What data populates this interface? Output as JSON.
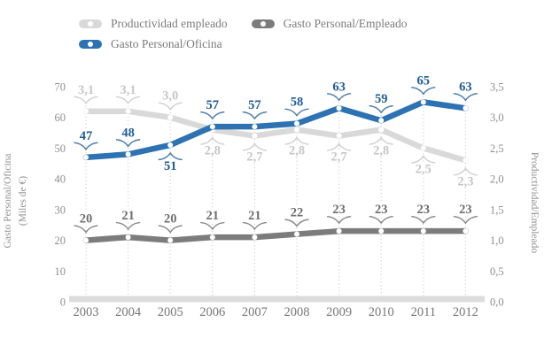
{
  "legend": {
    "items": [
      {
        "label": "Productividad empleado",
        "color": "#D9D9D9"
      },
      {
        "label": "Gasto Personal/Empleado",
        "color": "#7C7C7C"
      },
      {
        "label": "Gasto Personal/Oficina",
        "color": "#2D72B3"
      }
    ]
  },
  "chart_data": {
    "type": "line",
    "title": "",
    "grid": "vertical-dotted",
    "legend_position": "top-left",
    "categories": [
      "2003",
      "2004",
      "2005",
      "2006",
      "2007",
      "2008",
      "2009",
      "2010",
      "2011",
      "2012"
    ],
    "series": [
      {
        "name": "Productividad empleado",
        "axis": "right",
        "color": "#D9D9D9",
        "label_color": "#C6C6C6",
        "values": [
          3.1,
          3.1,
          3.0,
          2.8,
          2.7,
          2.8,
          2.7,
          2.8,
          2.5,
          2.3
        ],
        "labels": [
          "3,1",
          "3,1",
          "3,0",
          "2,8",
          "2,7",
          "2,8",
          "2,7",
          "2,8",
          "2,5",
          "2,3"
        ],
        "label_sides": [
          "above",
          "above",
          "above",
          "below",
          "below",
          "below",
          "below",
          "below",
          "below",
          "below"
        ]
      },
      {
        "name": "Gasto Personal/Empleado",
        "axis": "left",
        "color": "#7C7C7C",
        "label_color": "#6E6E6E",
        "values": [
          20,
          21,
          20,
          21,
          21,
          22,
          23,
          23,
          23,
          23
        ],
        "labels": [
          "20",
          "21",
          "20",
          "21",
          "21",
          "22",
          "23",
          "23",
          "23",
          "23"
        ],
        "label_sides": [
          "above",
          "above",
          "above",
          "above",
          "above",
          "above",
          "above",
          "above",
          "above",
          "above"
        ]
      },
      {
        "name": "Gasto Personal/Oficina",
        "axis": "left",
        "color": "#2D72B3",
        "label_color": "#1F5C97",
        "values": [
          47,
          48,
          51,
          57,
          57,
          58,
          63,
          59,
          65,
          63
        ],
        "labels": [
          "47",
          "48",
          "51",
          "57",
          "57",
          "58",
          "63",
          "59",
          "65",
          "63"
        ],
        "label_sides": [
          "above",
          "above",
          "below",
          "above",
          "above",
          "above",
          "above",
          "above",
          "above",
          "above"
        ]
      }
    ],
    "axes": {
      "left": {
        "title_line1": "Gasto Personal/Oficina",
        "title_line2": "(Miles de €)",
        "ticks": [
          "0",
          "10",
          "20",
          "30",
          "40",
          "50",
          "60",
          "70"
        ],
        "range": [
          0,
          70
        ]
      },
      "right": {
        "title": "Productividad/Empleado",
        "ticks": [
          "0,0",
          "0,5",
          "1,0",
          "1,5",
          "2,0",
          "2,5",
          "3,0",
          "3,5"
        ],
        "range": [
          0,
          3.5
        ]
      }
    }
  }
}
